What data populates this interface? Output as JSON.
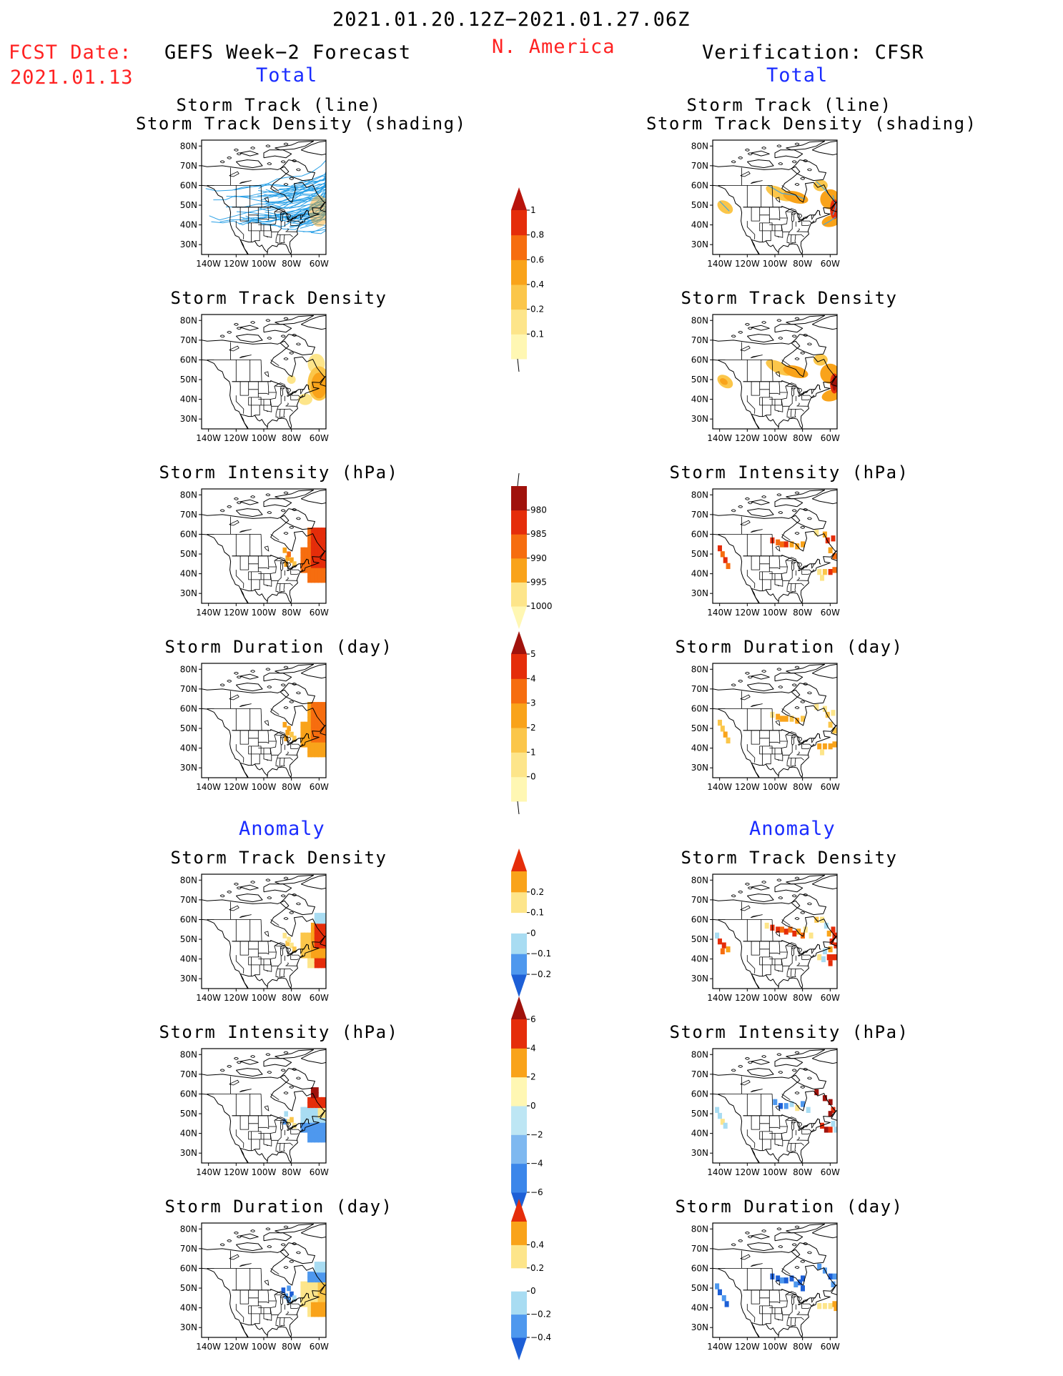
{
  "header": {
    "period": "2021.01.20.12Z−2021.01.27.06Z",
    "region": "N. America",
    "fcst_label": "FCST Date:",
    "fcst_date": "2021.01.13",
    "left_title": "GEFS Week−2 Forecast",
    "right_title": "Verification: CFSR",
    "left_section_total": "Total",
    "right_section_total": "Total",
    "left_section_anomaly": "Anomaly",
    "right_section_anomaly": "Anomaly"
  },
  "axes": {
    "lat_labels": [
      "80N",
      "70N",
      "60N",
      "50N",
      "40N",
      "30N"
    ],
    "lon_labels": [
      "140W",
      "120W",
      "100W",
      "80W",
      "60W"
    ],
    "lat_range": [
      25,
      83
    ],
    "lon_range": [
      -145,
      -55
    ]
  },
  "panel_titles": {
    "track_line": "Storm Track (line)",
    "track_shading": "Storm Track Density (shading)",
    "track_density": "Storm Track Density",
    "intensity": "Storm Intensity (hPa)",
    "duration": "Storm Duration (day)"
  },
  "colorbars": {
    "density_total": {
      "labels": [
        "0.1",
        "0.2",
        "0.4",
        "0.6",
        "0.8",
        "1"
      ],
      "colors": [
        "#fff7b3",
        "#fde58a",
        "#fbc64a",
        "#f9a31a",
        "#f66d0f",
        "#e52d0a",
        "#b8140c"
      ]
    },
    "intensity_total": {
      "labels": [
        "1000",
        "995",
        "990",
        "985",
        "980"
      ],
      "colors": [
        "#fff7b3",
        "#fde58a",
        "#f9a31a",
        "#f66d0f",
        "#e52d0a",
        "#a0120c"
      ]
    },
    "duration_total": {
      "labels": [
        "0",
        "1",
        "2",
        "3",
        "4",
        "5"
      ],
      "colors": [
        "#fff7b3",
        "#fde58a",
        "#fbc64a",
        "#f9a31a",
        "#f66d0f",
        "#e52d0a",
        "#a0120c"
      ]
    },
    "density_anom": {
      "labels": [
        "−0.2",
        "−0.1",
        "0",
        "0.1",
        "0.2"
      ],
      "colors": [
        "#1d5fd6",
        "#4e98ee",
        "#a8dcf2",
        "#ffffff",
        "#fde58a",
        "#f9a31a",
        "#e52d0a"
      ]
    },
    "intensity_anom": {
      "labels": [
        "−6",
        "−4",
        "−2",
        "0",
        "2",
        "4",
        "6"
      ],
      "colors": [
        "#1d5fd6",
        "#3b86ea",
        "#7eb8f0",
        "#bde6f4",
        "#fff7b3",
        "#f9a31a",
        "#e52d0a",
        "#a0120c"
      ]
    },
    "duration_anom": {
      "labels": [
        "−0.4",
        "−0.2",
        "0",
        "0.2",
        "0.4"
      ],
      "colors": [
        "#1d5fd6",
        "#4e98ee",
        "#a8dcf2",
        "#ffffff",
        "#fde58a",
        "#f9a31a",
        "#e52d0a"
      ]
    }
  },
  "data_colors": {
    "track_line": "#2aa0e6",
    "yellow": "#fde58a",
    "light_orange": "#fbc64a",
    "orange": "#f9a31a",
    "dark_orange": "#f66d0f",
    "red": "#e52d0a",
    "dark_red": "#a0120c",
    "light_blue": "#a8dcf2",
    "blue": "#4e98ee",
    "dark_blue": "#1d5fd6"
  }
}
